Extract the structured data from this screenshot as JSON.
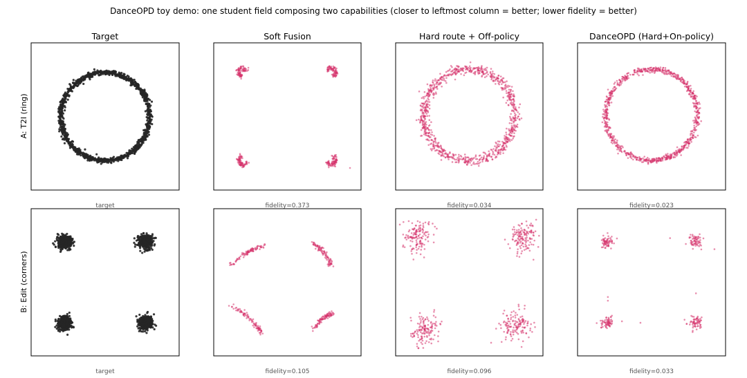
{
  "figure": {
    "title": "DanceOPD toy demo: one student field composing two capabilities (closer to leftmost column = better; lower fidelity = better)",
    "column_titles": [
      "Target",
      "Soft Fusion",
      "Hard route + Off-policy",
      "DanceOPD (Hard+On-policy)"
    ],
    "row_labels": [
      "A: T2I  (ring)",
      "B: Edit  (corners)"
    ]
  },
  "colors": {
    "target_points": "#262626",
    "student_points": "#d6336c"
  },
  "chart_data": [
    {
      "type": "scatter",
      "row": "A: T2I  (ring)",
      "column": "Target",
      "caption": "target",
      "pattern": "ring",
      "color": "#262626",
      "point_count": 1200,
      "ring_center": [
        0,
        0
      ],
      "ring_radius": 0.6,
      "spread": 0.018,
      "xlim": [
        -1,
        1
      ],
      "ylim": [
        -1,
        1
      ],
      "grid": false
    },
    {
      "type": "scatter",
      "row": "A: T2I  (ring)",
      "column": "Soft Fusion",
      "caption": "fidelity=0.373",
      "pattern": "corner_arcs",
      "color": "#d6336c",
      "point_count": 320,
      "corner_centers": [
        [
          -0.6,
          0.6
        ],
        [
          0.6,
          0.6
        ],
        [
          -0.6,
          -0.6
        ],
        [
          0.6,
          -0.6
        ]
      ],
      "arc_radius": 0.07,
      "outliers": [
        [
          0.85,
          -0.7
        ],
        [
          0.65,
          -0.68
        ]
      ],
      "xlim": [
        -1,
        1
      ],
      "ylim": [
        -1,
        1
      ],
      "grid": false
    },
    {
      "type": "scatter",
      "row": "A: T2I  (ring)",
      "column": "Hard route + Off-policy",
      "caption": "fidelity=0.034",
      "pattern": "ring",
      "color": "#d6336c",
      "point_count": 900,
      "ring_center": [
        0,
        0.02
      ],
      "ring_radius": 0.62,
      "spread": 0.035,
      "xlim": [
        -1,
        1
      ],
      "ylim": [
        -1,
        1
      ],
      "grid": false
    },
    {
      "type": "scatter",
      "row": "A: T2I  (ring)",
      "column": "DanceOPD (Hard+On-policy)",
      "caption": "fidelity=0.023",
      "pattern": "ring",
      "color": "#d6336c",
      "point_count": 850,
      "ring_center": [
        0,
        0.02
      ],
      "ring_radius": 0.62,
      "spread": 0.02,
      "xlim": [
        -1,
        1
      ],
      "ylim": [
        -1,
        1
      ],
      "grid": false
    },
    {
      "type": "scatter",
      "row": "B: Edit  (corners)",
      "column": "Target",
      "caption": "target",
      "pattern": "corner_blobs",
      "color": "#262626",
      "point_count": 1600,
      "corner_centers": [
        [
          -0.55,
          0.55
        ],
        [
          0.55,
          0.55
        ],
        [
          -0.55,
          -0.55
        ],
        [
          0.55,
          -0.55
        ]
      ],
      "spread": 0.045,
      "xlim": [
        -1,
        1
      ],
      "ylim": [
        -1,
        1
      ],
      "grid": false
    },
    {
      "type": "scatter",
      "row": "B: Edit  (corners)",
      "column": "Soft Fusion",
      "caption": "fidelity=0.105",
      "pattern": "corner_streaks",
      "color": "#d6336c",
      "point_count": 360,
      "streaks": [
        {
          "from": [
            -0.78,
            0.22
          ],
          "to": [
            -0.3,
            0.5
          ]
        },
        {
          "from": [
            0.32,
            0.55
          ],
          "to": [
            0.6,
            0.22
          ]
        },
        {
          "from": [
            -0.8,
            -0.3
          ],
          "to": [
            -0.35,
            -0.68
          ]
        },
        {
          "from": [
            0.35,
            -0.65
          ],
          "to": [
            0.62,
            -0.42
          ]
        }
      ],
      "xlim": [
        -1,
        1
      ],
      "ylim": [
        -1,
        1
      ],
      "grid": false
    },
    {
      "type": "scatter",
      "row": "B: Edit  (corners)",
      "column": "Hard route + Off-policy",
      "caption": "fidelity=0.096",
      "pattern": "corner_blobs",
      "color": "#d6336c",
      "point_count": 560,
      "corner_centers": [
        [
          -0.7,
          0.63
        ],
        [
          0.72,
          0.63
        ],
        [
          -0.6,
          -0.65
        ],
        [
          0.65,
          -0.6
        ]
      ],
      "spread": 0.1,
      "xlim": [
        -1,
        1
      ],
      "ylim": [
        -1,
        1
      ],
      "grid": false
    },
    {
      "type": "scatter",
      "row": "B: Edit  (corners)",
      "column": "DanceOPD (Hard+On-policy)",
      "caption": "fidelity=0.033",
      "pattern": "corner_blobs",
      "color": "#d6336c",
      "point_count": 260,
      "corner_centers": [
        [
          -0.6,
          0.55
        ],
        [
          0.6,
          0.55
        ],
        [
          -0.6,
          -0.55
        ],
        [
          0.6,
          -0.55
        ]
      ],
      "spread": 0.045,
      "outliers": [
        [
          0.25,
          0.6
        ],
        [
          0.85,
          0.45
        ],
        [
          -0.15,
          -0.55
        ],
        [
          -0.4,
          -0.53
        ],
        [
          -0.59,
          -0.2
        ],
        [
          -0.59,
          -0.25
        ],
        [
          0.6,
          -0.15
        ]
      ],
      "xlim": [
        -1,
        1
      ],
      "ylim": [
        -1,
        1
      ],
      "grid": false
    }
  ]
}
